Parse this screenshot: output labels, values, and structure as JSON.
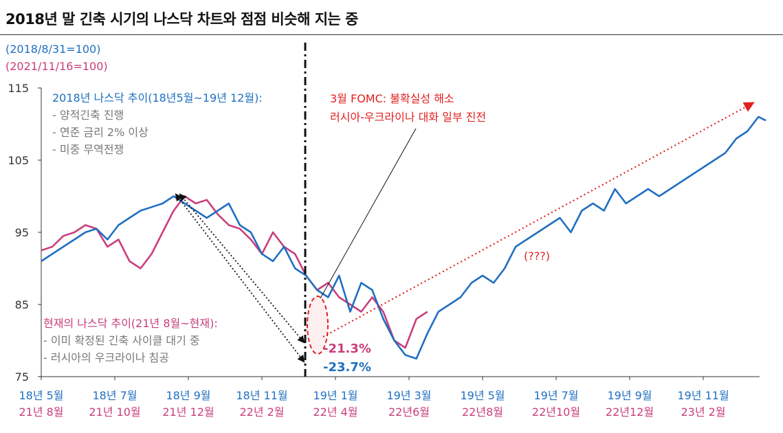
{
  "title": "2018년 말 긴축 시기의 나스닥 차트와 점점 비슷해 지는 중",
  "base_labels": [
    "(2018/8/31=100)",
    "(2021/11/16=100)"
  ],
  "notes": {
    "n2018": {
      "head": "2018년 나스닥 추이(18년5월~19년 12월):",
      "items": [
        "- 양적긴축 진행",
        "- 연준 금리 2% 이상",
        "- 미중 무역전쟁"
      ]
    },
    "n2021": {
      "head": "현재의 나스닥 추이(21년 8월~현재):",
      "items": [
        "- 이미 확정된 긴축 사이클 대기 중",
        "- 러시아의 우크라이나 침공"
      ]
    },
    "fomc": [
      "3월 FOMC: 불확실성 해소",
      "러시아-우크라이나 대화 일부 진전"
    ],
    "unknown": "(???)"
  },
  "annotations": {
    "drop_2021": "-21.3%",
    "drop_2018": "-23.7%"
  },
  "colors": {
    "series_2018": "#1f6fc0",
    "series_2021": "#c83e7b",
    "highlight": "#e0201f",
    "axis": "#333333"
  },
  "chart_data": {
    "type": "line",
    "ylim": [
      75,
      115
    ],
    "yticks": [
      75,
      85,
      95,
      105,
      115
    ],
    "grid": false,
    "xticks_top": [
      "18년 5월",
      "18년 7월",
      "18년 9월",
      "18년 11월",
      "19년 1월",
      "19년 3월",
      "19년 5월",
      "19년 7월",
      "19년 9월",
      "19년 11월"
    ],
    "xticks_bottom": [
      "21년 8월",
      "21년 10월",
      "21년 12월",
      "22년 2월",
      "22년 4월",
      "22년6월",
      "22년8월",
      "22년10월",
      "22년12월",
      "23년 2월"
    ],
    "series": [
      {
        "name": "2018",
        "color": "#1f6fc0",
        "x": [
          0,
          0.3,
          0.6,
          0.9,
          1.2,
          1.5,
          1.8,
          2.1,
          2.4,
          2.7,
          3.0,
          3.3,
          3.6,
          3.9,
          4.2,
          4.5,
          4.8,
          5.1,
          5.4,
          5.7,
          6.0,
          6.3,
          6.6,
          6.9,
          7.2,
          7.5,
          7.8,
          8.1,
          8.4,
          8.7,
          9.0,
          9.3,
          9.6,
          9.9,
          10.2,
          10.5,
          10.8,
          11.1,
          11.4,
          11.7,
          12.0,
          12.3,
          12.6,
          12.9,
          13.2,
          13.5,
          13.8,
          14.1,
          14.4,
          14.7,
          15.0,
          15.3,
          15.6,
          15.9,
          16.2,
          16.5,
          16.8,
          17.1,
          17.4,
          17.7,
          18.0,
          18.3,
          18.6,
          18.9,
          19.2,
          19.5,
          19.7
        ],
        "values": [
          91,
          92,
          93,
          94,
          95,
          95.5,
          94,
          96,
          97,
          98,
          98.5,
          99,
          100,
          99,
          98,
          97,
          98,
          99,
          96,
          95,
          92,
          91,
          93,
          90,
          89,
          87,
          86,
          89,
          84,
          88,
          87,
          83,
          80,
          78,
          77.5,
          81,
          84,
          85,
          86,
          88,
          89,
          88,
          90,
          93,
          94,
          95,
          96,
          97,
          95,
          98,
          99,
          98,
          101,
          99,
          100,
          101,
          100,
          101,
          102,
          103,
          104,
          105,
          106,
          108,
          109,
          111,
          110.5
        ]
      },
      {
        "name": "2021",
        "color": "#c83e7b",
        "x": [
          0,
          0.3,
          0.6,
          0.9,
          1.2,
          1.5,
          1.8,
          2.1,
          2.4,
          2.7,
          3.0,
          3.3,
          3.6,
          3.9,
          4.2,
          4.5,
          4.8,
          5.1,
          5.4,
          5.7,
          6.0,
          6.3,
          6.6,
          6.9,
          7.2,
          7.5,
          7.8,
          8.1,
          8.4,
          8.7,
          9.0,
          9.3,
          9.6,
          9.9,
          10.2,
          10.5
        ],
        "values": [
          92.5,
          93,
          94.5,
          95,
          96,
          95.5,
          93,
          94,
          91,
          90,
          92,
          95,
          98,
          100,
          99,
          99.5,
          97.5,
          96,
          95.5,
          94,
          92,
          95,
          93,
          92,
          89,
          87,
          88,
          86,
          85,
          84,
          86,
          84,
          80,
          79,
          83,
          84
        ]
      }
    ]
  }
}
